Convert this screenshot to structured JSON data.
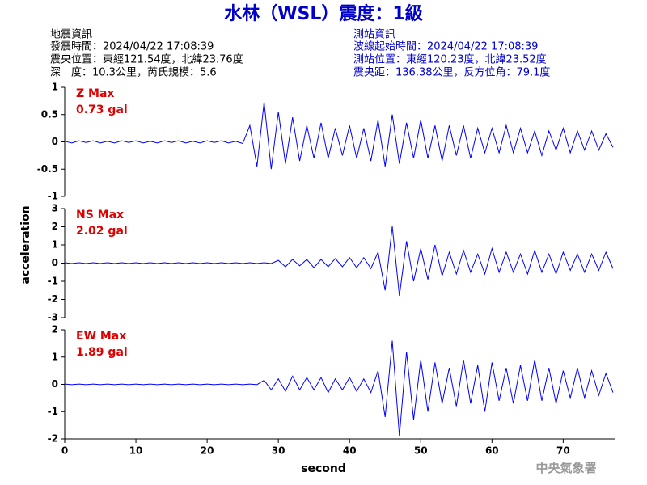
{
  "title": "水林（WSL）震度：1級",
  "header": {
    "left": [
      "地震資訊",
      "發震時間：2024/04/22 17:08:39",
      "震央位置：東經121.54度，北緯23.76度",
      "深　度：10.3公里，芮氏規模：5.6"
    ],
    "right": [
      "測站資訊",
      "波線起始時間：2024/04/22 17:08:39",
      "測站位置：東經120.23度，北緯23.52度",
      "震央距：136.38公里，反方位角：79.1度"
    ]
  },
  "footer": "中央氣象署",
  "chart_data": [
    {
      "type": "line",
      "annotations": [
        "Z Max",
        "0.73 gal"
      ],
      "xlim": [
        0,
        77
      ],
      "ylim": [
        -1,
        1
      ],
      "yticks": [
        1,
        0.5,
        0,
        -0.5,
        -1
      ],
      "x": [
        0,
        1,
        2,
        3,
        4,
        5,
        6,
        7,
        8,
        9,
        10,
        11,
        12,
        13,
        14,
        15,
        16,
        17,
        18,
        19,
        20,
        21,
        22,
        23,
        24,
        25,
        26,
        27,
        28,
        29,
        30,
        31,
        32,
        33,
        34,
        35,
        36,
        37,
        38,
        39,
        40,
        41,
        42,
        43,
        44,
        45,
        46,
        47,
        48,
        49,
        50,
        51,
        52,
        53,
        54,
        55,
        56,
        57,
        58,
        59,
        60,
        61,
        62,
        63,
        64,
        65,
        66,
        67,
        68,
        69,
        70,
        71,
        72,
        73,
        74,
        75,
        76,
        77
      ],
      "series": [
        {
          "color": "#0000ff",
          "values": [
            0.01,
            -0.02,
            0.02,
            -0.01,
            0.02,
            -0.02,
            0.01,
            -0.02,
            0.02,
            -0.01,
            0.02,
            -0.02,
            0.01,
            -0.02,
            0.02,
            -0.01,
            0.02,
            -0.02,
            0.01,
            -0.02,
            0.02,
            -0.01,
            0.02,
            -0.02,
            0.01,
            -0.03,
            0.3,
            -0.45,
            0.73,
            -0.5,
            0.55,
            -0.4,
            0.45,
            -0.35,
            0.3,
            -0.3,
            0.35,
            -0.3,
            0.25,
            -0.25,
            0.3,
            -0.3,
            0.25,
            -0.35,
            0.4,
            -0.45,
            0.5,
            -0.4,
            0.35,
            -0.3,
            0.4,
            -0.3,
            0.3,
            -0.35,
            0.3,
            -0.25,
            0.3,
            -0.3,
            0.25,
            -0.2,
            0.25,
            -0.2,
            0.3,
            -0.2,
            0.25,
            -0.2,
            0.2,
            -0.25,
            0.2,
            -0.15,
            0.25,
            -0.2,
            0.2,
            -0.15,
            0.2,
            -0.15,
            0.15,
            -0.1
          ]
        }
      ]
    },
    {
      "type": "line",
      "annotations": [
        "NS Max",
        "2.02 gal"
      ],
      "ylabel": "acceleration",
      "xlim": [
        0,
        77
      ],
      "ylim": [
        -3,
        3
      ],
      "yticks": [
        3,
        2,
        1,
        0,
        -1,
        -2,
        -3
      ],
      "x": [
        0,
        1,
        2,
        3,
        4,
        5,
        6,
        7,
        8,
        9,
        10,
        11,
        12,
        13,
        14,
        15,
        16,
        17,
        18,
        19,
        20,
        21,
        22,
        23,
        24,
        25,
        26,
        27,
        28,
        29,
        30,
        31,
        32,
        33,
        34,
        35,
        36,
        37,
        38,
        39,
        40,
        41,
        42,
        43,
        44,
        45,
        46,
        47,
        48,
        49,
        50,
        51,
        52,
        53,
        54,
        55,
        56,
        57,
        58,
        59,
        60,
        61,
        62,
        63,
        64,
        65,
        66,
        67,
        68,
        69,
        70,
        71,
        72,
        73,
        74,
        75,
        76,
        77
      ],
      "series": [
        {
          "color": "#0000ff",
          "values": [
            0.02,
            -0.02,
            0.02,
            -0.02,
            0.02,
            -0.02,
            0.02,
            -0.02,
            0.02,
            -0.02,
            0.02,
            -0.02,
            0.02,
            -0.02,
            0.02,
            -0.02,
            0.02,
            -0.02,
            0.02,
            -0.02,
            0.02,
            -0.02,
            0.02,
            -0.02,
            0.02,
            -0.02,
            0.02,
            -0.02,
            0.02,
            -0.02,
            0.15,
            -0.2,
            0.2,
            -0.15,
            0.2,
            -0.25,
            0.2,
            -0.2,
            0.25,
            -0.2,
            0.3,
            -0.25,
            0.3,
            -0.3,
            0.6,
            -1.5,
            2.02,
            -1.8,
            1.2,
            -1.0,
            0.8,
            -0.9,
            1.0,
            -0.7,
            0.6,
            -0.6,
            0.7,
            -0.5,
            0.5,
            -0.6,
            0.8,
            -0.5,
            0.6,
            -0.5,
            0.5,
            -0.6,
            0.7,
            -0.5,
            0.5,
            -0.6,
            0.6,
            -0.4,
            0.5,
            -0.5,
            0.5,
            -0.4,
            0.6,
            -0.3
          ]
        }
      ]
    },
    {
      "type": "line",
      "annotations": [
        "EW Max",
        "1.89 gal"
      ],
      "xlabel": "second",
      "xlim": [
        0,
        77
      ],
      "xticks": [
        0,
        10,
        20,
        30,
        40,
        50,
        60,
        70
      ],
      "ylim": [
        -2,
        2
      ],
      "yticks": [
        2,
        1,
        0,
        -1,
        -2
      ],
      "x": [
        0,
        1,
        2,
        3,
        4,
        5,
        6,
        7,
        8,
        9,
        10,
        11,
        12,
        13,
        14,
        15,
        16,
        17,
        18,
        19,
        20,
        21,
        22,
        23,
        24,
        25,
        26,
        27,
        28,
        29,
        30,
        31,
        32,
        33,
        34,
        35,
        36,
        37,
        38,
        39,
        40,
        41,
        42,
        43,
        44,
        45,
        46,
        47,
        48,
        49,
        50,
        51,
        52,
        53,
        54,
        55,
        56,
        57,
        58,
        59,
        60,
        61,
        62,
        63,
        64,
        65,
        66,
        67,
        68,
        69,
        70,
        71,
        72,
        73,
        74,
        75,
        76,
        77
      ],
      "series": [
        {
          "color": "#0000ff",
          "values": [
            0.01,
            -0.01,
            0.01,
            -0.01,
            0.01,
            -0.01,
            0.01,
            -0.01,
            0.01,
            -0.01,
            0.01,
            -0.01,
            0.01,
            -0.01,
            0.01,
            -0.01,
            0.01,
            -0.01,
            0.01,
            -0.01,
            0.01,
            -0.01,
            0.01,
            -0.01,
            0.01,
            -0.01,
            0.01,
            -0.01,
            0.15,
            -0.2,
            0.2,
            -0.25,
            0.3,
            -0.2,
            0.25,
            -0.2,
            0.25,
            -0.3,
            0.2,
            -0.2,
            0.25,
            -0.25,
            0.2,
            -0.3,
            0.5,
            -1.2,
            1.6,
            -1.89,
            1.2,
            -1.3,
            0.9,
            -1.0,
            0.8,
            -0.7,
            0.6,
            -0.8,
            0.9,
            -0.7,
            0.7,
            -1.0,
            0.8,
            -0.6,
            0.6,
            -0.7,
            0.7,
            -0.6,
            0.9,
            -0.6,
            0.6,
            -0.7,
            0.5,
            -0.5,
            0.6,
            -0.5,
            0.5,
            -0.4,
            0.4,
            -0.3
          ]
        }
      ]
    }
  ]
}
